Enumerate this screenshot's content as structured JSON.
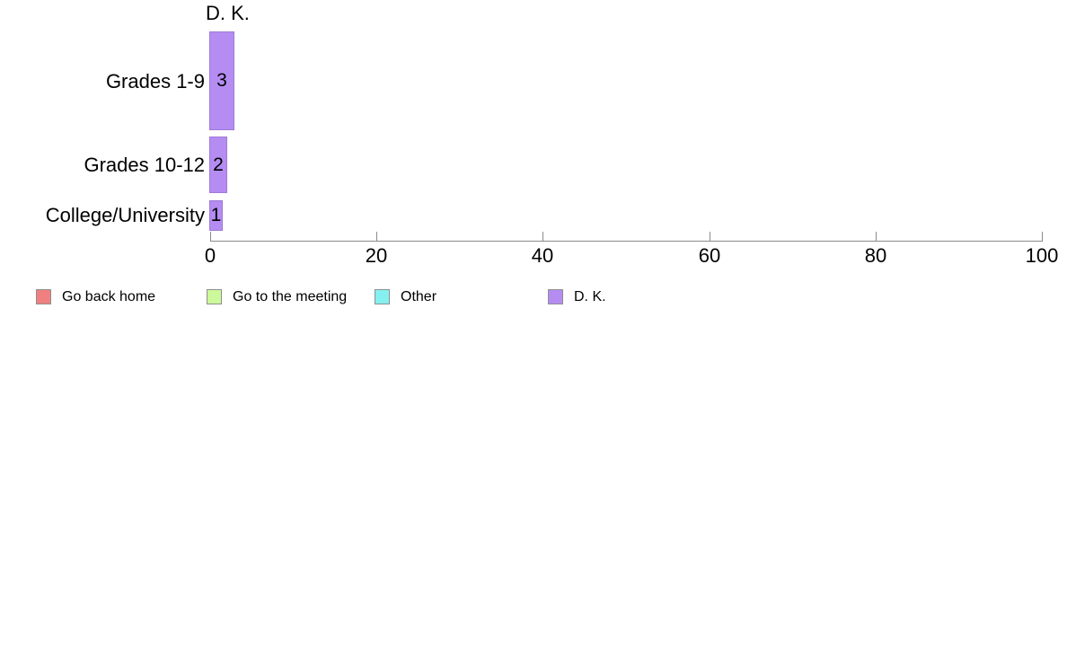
{
  "chart_data": {
    "type": "bar",
    "orientation": "horizontal",
    "title": "D. K.",
    "categories": [
      "Grades 1-9",
      "Grades 10-12",
      "College/University"
    ],
    "values": [
      3,
      2,
      1
    ],
    "xlabel": "",
    "ylabel": "",
    "xlim": [
      0,
      100
    ],
    "x_ticks": [
      "0",
      "20",
      "40",
      "60",
      "80",
      "100"
    ],
    "grid": "off",
    "bar_color": "#b48cf2",
    "bar_border_color": "#9e7bd4",
    "axis_color": "#8c8c8c",
    "legend_position": "bottom",
    "legend": [
      {
        "label": "Go back home",
        "color": "#f08080"
      },
      {
        "label": "Go to the meeting",
        "color": "#ccf999"
      },
      {
        "label": "Other",
        "color": "#85f0f0"
      },
      {
        "label": "D. K.",
        "color": "#b48cf2"
      }
    ]
  }
}
